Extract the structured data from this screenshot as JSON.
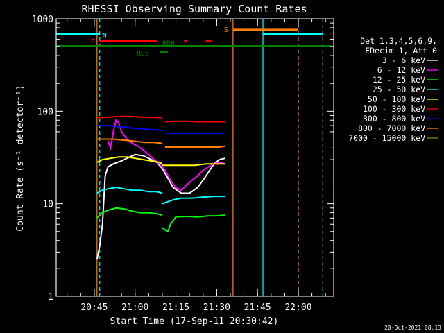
{
  "chart_data": {
    "type": "line",
    "title": "RHESSI Observing Summary Count Rates",
    "xlabel": "Start Time (17-Sep-11 20:30:42)",
    "ylabel": "Count Rate (s⁻¹ detector⁻¹)",
    "yscale": "log",
    "ylim": [
      1,
      1000
    ],
    "xlim_minutes": [
      "20:31",
      "22:13"
    ],
    "x_ticks": [
      "20:45",
      "21:00",
      "21:15",
      "21:30",
      "21:45",
      "22:00"
    ],
    "y_ticks": [
      "1",
      "10",
      "100",
      "1000"
    ],
    "legend_header": [
      "Det 1,3,4,5,6,9,",
      "FDecim 1, Att 0"
    ],
    "legend_position": "right",
    "grid": false,
    "timestamp": "20-Oct-2021 08:13",
    "series": [
      {
        "name": "3 - 6 keV",
        "color": "#ffffff",
        "segments": [
          [
            [
              "20:46",
              2.5
            ],
            [
              "20:47",
              3.5
            ],
            [
              "20:48",
              6
            ],
            [
              "20:49",
              20
            ],
            [
              "20:50",
              25
            ],
            [
              "20:52",
              27
            ],
            [
              "20:55",
              29
            ],
            [
              "20:58",
              32
            ],
            [
              "21:00",
              34
            ],
            [
              "21:03",
              33
            ],
            [
              "21:06",
              30
            ],
            [
              "21:08",
              28
            ],
            [
              "21:10",
              24
            ],
            [
              "21:12",
              19
            ],
            [
              "21:14",
              15
            ],
            [
              "21:17",
              13
            ],
            [
              "21:20",
              13
            ],
            [
              "21:23",
              15
            ],
            [
              "21:25",
              18
            ],
            [
              "21:27",
              22
            ],
            [
              "21:29",
              27
            ],
            [
              "21:31",
              30
            ],
            [
              "21:33",
              31
            ]
          ]
        ]
      },
      {
        "name": "6 - 12 keV",
        "color": "#ff00ff",
        "segments": [
          [
            [
              "20:50",
              48
            ],
            [
              "20:51",
              40
            ],
            [
              "20:52",
              60
            ],
            [
              "20:53",
              80
            ],
            [
              "20:54",
              75
            ],
            [
              "20:55",
              60
            ],
            [
              "20:57",
              50
            ],
            [
              "20:59",
              45
            ],
            [
              "21:01",
              42
            ],
            [
              "21:03",
              38
            ],
            [
              "21:05",
              34
            ],
            [
              "21:07",
              30
            ],
            [
              "21:09",
              27
            ],
            [
              "21:11",
              23
            ],
            [
              "21:13",
              18
            ],
            [
              "21:15",
              15
            ],
            [
              "21:17",
              14
            ],
            [
              "21:19",
              16
            ],
            [
              "21:21",
              18
            ],
            [
              "21:23",
              20
            ],
            [
              "21:25",
              23
            ],
            [
              "21:27",
              25
            ],
            [
              "21:29",
              27
            ],
            [
              "21:31",
              28
            ],
            [
              "21:33",
              27
            ]
          ]
        ]
      },
      {
        "name": "12 - 25 keV",
        "color": "#00ff00",
        "segments": [
          [
            [
              "20:46",
              7
            ],
            [
              "20:48",
              8
            ],
            [
              "20:50",
              8.5
            ],
            [
              "20:53",
              9
            ],
            [
              "20:56",
              8.8
            ],
            [
              "20:59",
              8.3
            ],
            [
              "21:02",
              8
            ],
            [
              "21:05",
              8
            ],
            [
              "21:08",
              7.8
            ],
            [
              "21:10",
              7.5
            ]
          ],
          [
            [
              "21:10",
              5.5
            ],
            [
              "21:12",
              5
            ],
            [
              "21:13",
              6
            ],
            [
              "21:15",
              7.2
            ],
            [
              "21:19",
              7.3
            ],
            [
              "21:23",
              7.2
            ],
            [
              "21:27",
              7.4
            ],
            [
              "21:30",
              7.4
            ],
            [
              "21:33",
              7.5
            ]
          ]
        ]
      },
      {
        "name": "25 - 50 keV",
        "color": "#00ffff",
        "segments": [
          [
            [
              "20:46",
              13
            ],
            [
              "20:48",
              14
            ],
            [
              "20:50",
              14.5
            ],
            [
              "20:53",
              15
            ],
            [
              "20:56",
              14.5
            ],
            [
              "20:59",
              14
            ],
            [
              "21:02",
              14
            ],
            [
              "21:05",
              13.5
            ],
            [
              "21:08",
              13.5
            ],
            [
              "21:10",
              13
            ]
          ],
          [
            [
              "21:10",
              10
            ],
            [
              "21:12",
              10.5
            ],
            [
              "21:14",
              11
            ],
            [
              "21:17",
              11.5
            ],
            [
              "21:21",
              11.5
            ],
            [
              "21:25",
              11.8
            ],
            [
              "21:29",
              12
            ],
            [
              "21:33",
              12
            ]
          ]
        ]
      },
      {
        "name": "50 - 100 keV",
        "color": "#ffff00",
        "segments": [
          [
            [
              "20:46",
              28
            ],
            [
              "20:48",
              30
            ],
            [
              "20:51",
              31
            ],
            [
              "20:54",
              32
            ],
            [
              "20:57",
              32
            ],
            [
              "21:00",
              31
            ],
            [
              "21:03",
              30
            ],
            [
              "21:06",
              29
            ],
            [
              "21:09",
              28
            ],
            [
              "21:10",
              27
            ]
          ],
          [
            [
              "21:10",
              26
            ],
            [
              "21:14",
              26
            ],
            [
              "21:18",
              26
            ],
            [
              "21:22",
              26
            ],
            [
              "21:26",
              27
            ],
            [
              "21:30",
              27
            ],
            [
              "21:33",
              27
            ]
          ]
        ]
      },
      {
        "name": "100 - 300 keV",
        "color": "#ff0000",
        "segments": [
          [
            [
              "20:46",
              85
            ],
            [
              "20:49",
              86
            ],
            [
              "20:52",
              87
            ],
            [
              "20:55",
              88
            ],
            [
              "20:58",
              88
            ],
            [
              "21:01",
              87
            ],
            [
              "21:04",
              86
            ],
            [
              "21:07",
              86
            ],
            [
              "21:10",
              85
            ]
          ],
          [
            [
              "21:11",
              77
            ],
            [
              "21:15",
              78
            ],
            [
              "21:19",
              78
            ],
            [
              "21:23",
              77
            ],
            [
              "21:27",
              77
            ],
            [
              "21:31",
              77
            ],
            [
              "21:33",
              77
            ]
          ]
        ]
      },
      {
        "name": "300 - 800 keV",
        "color": "#0000ff",
        "segments": [
          [
            [
              "20:46",
              70
            ],
            [
              "20:49",
              70
            ],
            [
              "20:52",
              69
            ],
            [
              "20:55",
              68
            ],
            [
              "20:58",
              66
            ],
            [
              "21:01",
              65
            ],
            [
              "21:04",
              64
            ],
            [
              "21:07",
              63
            ],
            [
              "21:10",
              62
            ]
          ],
          [
            [
              "21:11",
              58
            ],
            [
              "21:15",
              58
            ],
            [
              "21:19",
              58
            ],
            [
              "21:23",
              58
            ],
            [
              "21:27",
              58
            ],
            [
              "21:31",
              58
            ],
            [
              "21:33",
              58
            ]
          ]
        ]
      },
      {
        "name": "800 - 7000 keV",
        "color": "#ff8000",
        "segments": [
          [
            [
              "20:46",
              50
            ],
            [
              "20:49",
              50
            ],
            [
              "20:52",
              50
            ],
            [
              "20:55",
              49
            ],
            [
              "20:58",
              48
            ],
            [
              "21:01",
              47
            ],
            [
              "21:04",
              46
            ],
            [
              "21:07",
              46
            ],
            [
              "21:10",
              45
            ]
          ],
          [
            [
              "21:11",
              41
            ],
            [
              "21:15",
              41
            ],
            [
              "21:19",
              41
            ],
            [
              "21:23",
              41
            ],
            [
              "21:27",
              41
            ],
            [
              "21:31",
              41
            ],
            [
              "21:33",
              42
            ]
          ]
        ]
      },
      {
        "name": "7000 - 15000 keV",
        "color": "#808000",
        "segments": []
      }
    ],
    "flags": [
      {
        "label": "N",
        "color": "#00ffff",
        "y_level": 680,
        "segments": [
          [
            "20:31",
            "20:47"
          ],
          [
            "21:47",
            "22:09"
          ]
        ]
      },
      {
        "label": "S",
        "color": "#ff8000",
        "y_level": 760,
        "segments": [
          [
            "21:36",
            "22:00"
          ]
        ]
      },
      {
        "label": "F",
        "color": "#ff0000",
        "y_level": 575,
        "segments": [
          [
            "20:47",
            "21:08"
          ],
          [
            "21:18",
            "21:19"
          ],
          [
            "21:26",
            "21:28"
          ]
        ]
      },
      {
        "label": "RD0",
        "color": "#008000",
        "y_level": 505,
        "segments": [
          [
            "20:31",
            "22:12"
          ]
        ]
      },
      {
        "label": "RD6",
        "color": "#008000",
        "y_level": 435,
        "segments": [
          [
            "21:09",
            "21:12"
          ]
        ]
      }
    ],
    "vertical_lines": [
      {
        "time": "20:31",
        "color": "#00ffff",
        "style": "solid"
      },
      {
        "time": "20:46",
        "color": "#ff8000",
        "style": "solid"
      },
      {
        "time": "20:47",
        "color": "#00ffff",
        "style": "dashed"
      },
      {
        "time": "21:36",
        "color": "#ff8000",
        "style": "solid"
      },
      {
        "time": "21:47",
        "color": "#00ffff",
        "style": "solid"
      },
      {
        "time": "22:00",
        "color": "#ff8000",
        "style": "dashed"
      },
      {
        "time": "22:09",
        "color": "#00ffff",
        "style": "dashed"
      }
    ]
  }
}
